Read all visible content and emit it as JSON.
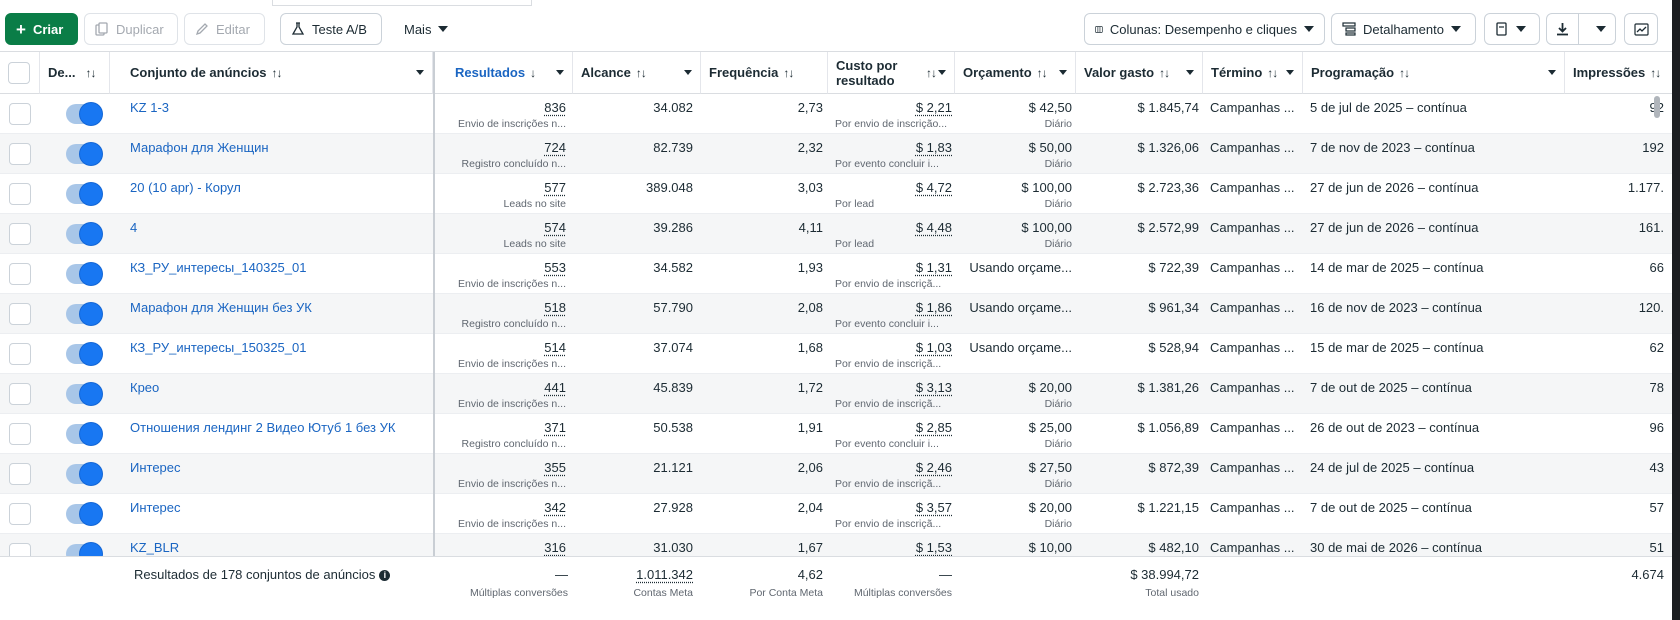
{
  "toolbar": {
    "create": "Criar",
    "duplicate": "Duplicar",
    "edit": "Editar",
    "ab_test": "Teste A/B",
    "more": "Mais",
    "columns": "Colunas: Desempenho e cliques",
    "breakdown": "Detalhamento"
  },
  "headers": {
    "delivery": "De...",
    "adset": "Conjunto de anúncios",
    "results": "Resultados",
    "reach": "Alcance",
    "frequency": "Frequência",
    "cost_line1": "Custo por",
    "cost_line2": "resultado",
    "budget": "Orçamento",
    "spent": "Valor gasto",
    "end": "Término",
    "schedule": "Programação",
    "impressions": "Impressões"
  },
  "rows": [
    {
      "name": "KZ 1-3",
      "results": "836",
      "results_sub": "Envio de inscrições n...",
      "reach": "34.082",
      "freq": "2,73",
      "cost": "$ 2,21",
      "cost_sub": "Por envio de inscrição...",
      "budget": "$ 42,50",
      "budget_sub": "Diário",
      "spent": "$ 1.845,74",
      "end": "Campanhas ...",
      "schedule": "5 de jul de 2025 – contínua",
      "impr": "92"
    },
    {
      "name": "Марафон для Женщин",
      "results": "724",
      "results_sub": "Registro concluído n...",
      "reach": "82.739",
      "freq": "2,32",
      "cost": "$ 1,83",
      "cost_sub": "Por evento concluir i...",
      "budget": "$ 50,00",
      "budget_sub": "Diário",
      "spent": "$ 1.326,06",
      "end": "Campanhas ...",
      "schedule": "7 de nov de 2023 – contínua",
      "impr": "192"
    },
    {
      "name": "20 (10 apr) - Корул",
      "results": "577",
      "results_sub": "Leads no site",
      "reach": "389.048",
      "freq": "3,03",
      "cost": "$ 4,72",
      "cost_sub": "Por lead",
      "budget": "$ 100,00",
      "budget_sub": "Diário",
      "spent": "$ 2.723,36",
      "end": "Campanhas ...",
      "schedule": "27 de jun de 2026 – contínua",
      "impr": "1.177."
    },
    {
      "name": "4",
      "results": "574",
      "results_sub": "Leads no site",
      "reach": "39.286",
      "freq": "4,11",
      "cost": "$ 4,48",
      "cost_sub": "Por lead",
      "budget": "$ 100,00",
      "budget_sub": "Diário",
      "spent": "$ 2.572,99",
      "end": "Campanhas ...",
      "schedule": "27 de jun de 2026 – contínua",
      "impr": "161."
    },
    {
      "name": "КЗ_РУ_интересы_140325_01",
      "results": "553",
      "results_sub": "Envio de inscrições n...",
      "reach": "34.582",
      "freq": "1,93",
      "cost": "$ 1,31",
      "cost_sub": "Por envio de inscriçã...",
      "budget": "Usando orçame...",
      "budget_sub": "",
      "spent": "$ 722,39",
      "end": "Campanhas ...",
      "schedule": "14 de mar de 2025 – contínua",
      "impr": "66"
    },
    {
      "name": "Марафон для Женщин без УК",
      "results": "518",
      "results_sub": "Registro concluído n...",
      "reach": "57.790",
      "freq": "2,08",
      "cost": "$ 1,86",
      "cost_sub": "Por evento concluir i...",
      "budget": "Usando orçame...",
      "budget_sub": "",
      "spent": "$ 961,34",
      "end": "Campanhas ...",
      "schedule": "16 de nov de 2023 – contínua",
      "impr": "120."
    },
    {
      "name": "КЗ_РУ_интересы_150325_01",
      "results": "514",
      "results_sub": "Envio de inscrições n...",
      "reach": "37.074",
      "freq": "1,68",
      "cost": "$ 1,03",
      "cost_sub": "Por envio de inscriçã...",
      "budget": "Usando orçame...",
      "budget_sub": "",
      "spent": "$ 528,94",
      "end": "Campanhas ...",
      "schedule": "15 de mar de 2025 – contínua",
      "impr": "62"
    },
    {
      "name": "Крео",
      "results": "441",
      "results_sub": "Envio de inscrições n...",
      "reach": "45.839",
      "freq": "1,72",
      "cost": "$ 3,13",
      "cost_sub": "Por envio de inscriçã...",
      "budget": "$ 20,00",
      "budget_sub": "Diário",
      "spent": "$ 1.381,26",
      "end": "Campanhas ...",
      "schedule": "7 de out de 2025 – contínua",
      "impr": "78"
    },
    {
      "name": "Отношения лендинг 2 Видео Ютуб 1 без УК",
      "results": "371",
      "results_sub": "Registro concluído n...",
      "reach": "50.538",
      "freq": "1,91",
      "cost": "$ 2,85",
      "cost_sub": "Por evento concluir i...",
      "budget": "$ 25,00",
      "budget_sub": "Diário",
      "spent": "$ 1.056,89",
      "end": "Campanhas ...",
      "schedule": "26 de out de 2023 – contínua",
      "impr": "96"
    },
    {
      "name": "Интерес",
      "results": "355",
      "results_sub": "Envio de inscrições n...",
      "reach": "21.121",
      "freq": "2,06",
      "cost": "$ 2,46",
      "cost_sub": "Por envio de inscriçã...",
      "budget": "$ 27,50",
      "budget_sub": "Diário",
      "spent": "$ 872,39",
      "end": "Campanhas ...",
      "schedule": "24 de jul de 2025 – contínua",
      "impr": "43"
    },
    {
      "name": "Интерес",
      "results": "342",
      "results_sub": "Envio de inscrições n...",
      "reach": "27.928",
      "freq": "2,04",
      "cost": "$ 3,57",
      "cost_sub": "Por envio de inscriçã...",
      "budget": "$ 20,00",
      "budget_sub": "Diário",
      "spent": "$ 1.221,15",
      "end": "Campanhas ...",
      "schedule": "7 de out de 2025 – contínua",
      "impr": "57"
    },
    {
      "name": "KZ_BLR",
      "results": "316",
      "results_sub": "",
      "reach": "31.030",
      "freq": "1,67",
      "cost": "$ 1,53",
      "cost_sub": "",
      "budget": "$ 10,00",
      "budget_sub": "",
      "spent": "$ 482,10",
      "end": "Campanhas ...",
      "schedule": "30 de mai de 2026 – contínua",
      "impr": "51"
    }
  ],
  "footer": {
    "label": "Resultados de 178 conjuntos de anúncios",
    "results": "—",
    "results_sub": "Múltiplas conversões",
    "reach": "1.011.342",
    "reach_sub": "Contas Meta",
    "freq": "4,62",
    "freq_sub": "Por Conta Meta",
    "cost": "—",
    "cost_sub": "Múltiplas conversões",
    "spent": "$ 38.994,72",
    "spent_sub": "Total usado",
    "impr": "4.674"
  },
  "colors": {
    "accent": "#1877f2",
    "link": "#1a65c2",
    "create": "#0a7d47"
  }
}
